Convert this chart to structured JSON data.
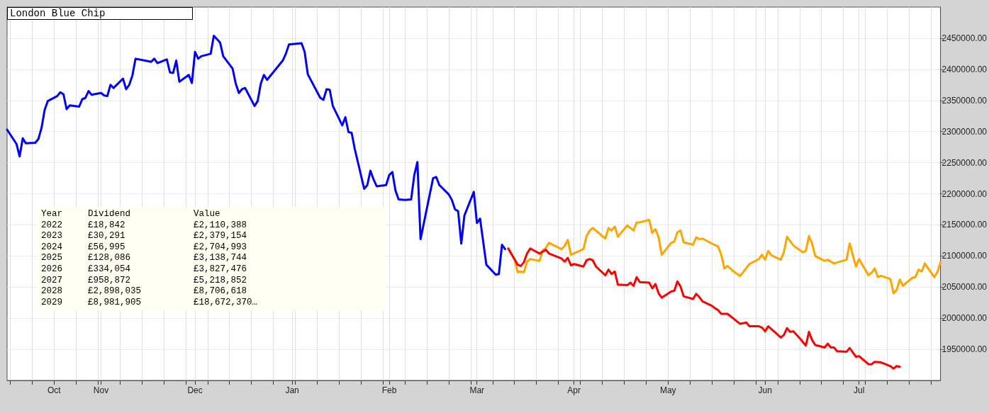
{
  "chart_data": {
    "type": "line",
    "title": "London Blue Chip",
    "xlim": [
      "2024-10-02",
      "2025-07-27"
    ],
    "xticks": [
      {
        "value": "2024-10-03",
        "label": null
      },
      {
        "value": "2024-10-10",
        "label": null
      },
      {
        "value": "2024-10-17",
        "label": "Oct"
      },
      {
        "value": "2024-10-24",
        "label": null
      },
      {
        "value": "2024-10-31",
        "label": null
      },
      {
        "value": "2024-11-01",
        "label": "Nov"
      },
      {
        "value": "2024-11-07",
        "label": null
      },
      {
        "value": "2024-11-14",
        "label": null
      },
      {
        "value": "2024-11-21",
        "label": null
      },
      {
        "value": "2024-11-28",
        "label": null
      },
      {
        "value": "2024-12-01",
        "label": "Dec"
      },
      {
        "value": "2024-12-05",
        "label": null
      },
      {
        "value": "2024-12-12",
        "label": null
      },
      {
        "value": "2024-12-19",
        "label": null
      },
      {
        "value": "2024-12-26",
        "label": null
      },
      {
        "value": "2025-01-01",
        "label": "Jan"
      },
      {
        "value": "2025-01-02",
        "label": null
      },
      {
        "value": "2025-01-09",
        "label": null
      },
      {
        "value": "2025-01-16",
        "label": null
      },
      {
        "value": "2025-01-23",
        "label": null
      },
      {
        "value": "2025-01-30",
        "label": null
      },
      {
        "value": "2025-02-01",
        "label": "Feb"
      },
      {
        "value": "2025-02-06",
        "label": null
      },
      {
        "value": "2025-02-13",
        "label": null
      },
      {
        "value": "2025-02-20",
        "label": null
      },
      {
        "value": "2025-02-27",
        "label": null
      },
      {
        "value": "2025-03-01",
        "label": "Mar"
      },
      {
        "value": "2025-03-06",
        "label": null
      },
      {
        "value": "2025-03-13",
        "label": null
      },
      {
        "value": "2025-03-20",
        "label": null
      },
      {
        "value": "2025-03-27",
        "label": null
      },
      {
        "value": "2025-04-01",
        "label": "Apr"
      },
      {
        "value": "2025-04-03",
        "label": null
      },
      {
        "value": "2025-04-10",
        "label": null
      },
      {
        "value": "2025-04-17",
        "label": null
      },
      {
        "value": "2025-04-24",
        "label": null
      },
      {
        "value": "2025-05-01",
        "label": "May"
      },
      {
        "value": "2025-05-08",
        "label": null
      },
      {
        "value": "2025-05-15",
        "label": null
      },
      {
        "value": "2025-05-22",
        "label": null
      },
      {
        "value": "2025-05-29",
        "label": null
      },
      {
        "value": "2025-06-01",
        "label": "Jun"
      },
      {
        "value": "2025-06-05",
        "label": null
      },
      {
        "value": "2025-06-12",
        "label": null
      },
      {
        "value": "2025-06-19",
        "label": null
      },
      {
        "value": "2025-06-26",
        "label": null
      },
      {
        "value": "2025-07-01",
        "label": "Jul"
      },
      {
        "value": "2025-07-03",
        "label": null
      },
      {
        "value": "2025-07-10",
        "label": null
      },
      {
        "value": "2025-07-17",
        "label": null
      },
      {
        "value": "2025-07-24",
        "label": null
      }
    ],
    "ylim": [
      1900000,
      2500000
    ],
    "yticks": [
      {
        "value": 1950000,
        "label": "1950000.00"
      },
      {
        "value": 2000000,
        "label": "2000000.00"
      },
      {
        "value": 2050000,
        "label": "2050000.00"
      },
      {
        "value": 2100000,
        "label": "2100000.00"
      },
      {
        "value": 2150000,
        "label": "2150000.00"
      },
      {
        "value": 2200000,
        "label": "2200000.00"
      },
      {
        "value": 2250000,
        "label": "2250000.00"
      },
      {
        "value": 2300000,
        "label": "2300000.00"
      },
      {
        "value": 2350000,
        "label": "2350000.00"
      },
      {
        "value": 2400000,
        "label": "2400000.00"
      },
      {
        "value": 2450000,
        "label": "2450000.00"
      }
    ],
    "grid": true,
    "marker": "none",
    "line_style": "solid",
    "series": [
      {
        "color": "#0000ff",
        "x": [
          "2024-10-02",
          "2024-10-05",
          "2024-10-06",
          "2024-10-07",
          "2024-10-08",
          "2024-10-11",
          "2024-10-12",
          "2024-10-13",
          "2024-10-14",
          "2024-10-15",
          "2024-10-18",
          "2024-10-19",
          "2024-10-20",
          "2024-10-21",
          "2024-10-22",
          "2024-10-25",
          "2024-10-26",
          "2024-10-27",
          "2024-10-28",
          "2024-10-29",
          "2024-11-01",
          "2024-11-02",
          "2024-11-03",
          "2024-11-04",
          "2024-11-05",
          "2024-11-08",
          "2024-11-09",
          "2024-11-10",
          "2024-11-11",
          "2024-11-12",
          "2024-11-15",
          "2024-11-17",
          "2024-11-18",
          "2024-11-19",
          "2024-11-22",
          "2024-11-23",
          "2024-11-24",
          "2024-11-25",
          "2024-11-26",
          "2024-11-29",
          "2024-11-30",
          "2024-12-01",
          "2024-12-02",
          "2024-12-03",
          "2024-12-06",
          "2024-12-07",
          "2024-12-09",
          "2024-12-10",
          "2024-12-13",
          "2024-12-14",
          "2024-12-15",
          "2024-12-16",
          "2024-12-17",
          "2024-12-20",
          "2024-12-21",
          "2024-12-22",
          "2024-12-23",
          "2024-12-24",
          "2024-12-29",
          "2024-12-30",
          "2024-12-31",
          "2025-01-04",
          "2025-01-05",
          "2025-01-06",
          "2025-01-10",
          "2025-01-11",
          "2025-01-12",
          "2025-01-13",
          "2025-01-14",
          "2025-01-17",
          "2025-01-18",
          "2025-01-19",
          "2025-01-20",
          "2025-01-21",
          "2025-01-24",
          "2025-01-25",
          "2025-01-26",
          "2025-01-27",
          "2025-01-28",
          "2025-01-31",
          "2025-02-01",
          "2025-02-02",
          "2025-02-03",
          "2025-02-04",
          "2025-02-06",
          "2025-02-08",
          "2025-02-09",
          "2025-02-10",
          "2025-02-11",
          "2025-02-15",
          "2025-02-16",
          "2025-02-17",
          "2025-02-20",
          "2025-02-21",
          "2025-02-22",
          "2025-02-23",
          "2025-02-24",
          "2025-02-25",
          "2025-02-28",
          "2025-03-01",
          "2025-03-02",
          "2025-03-04",
          "2025-03-07",
          "2025-03-08",
          "2025-03-09",
          "2025-03-10"
        ],
        "values": [
          2303000,
          2280000,
          2260000,
          2289000,
          2281000,
          2282000,
          2288000,
          2306000,
          2335000,
          2349000,
          2357000,
          2363000,
          2360000,
          2336000,
          2342000,
          2340000,
          2352000,
          2354000,
          2365000,
          2359000,
          2362000,
          2358000,
          2357000,
          2375000,
          2370000,
          2385000,
          2368000,
          2375000,
          2390000,
          2417000,
          2414000,
          2412000,
          2417000,
          2410000,
          2416000,
          2395000,
          2394000,
          2414000,
          2380000,
          2391000,
          2378000,
          2428000,
          2417000,
          2421000,
          2425000,
          2454000,
          2443000,
          2421000,
          2401000,
          2377000,
          2362000,
          2368000,
          2370000,
          2341000,
          2349000,
          2377000,
          2391000,
          2383000,
          2414000,
          2425000,
          2440000,
          2442000,
          2428000,
          2392000,
          2354000,
          2351000,
          2368000,
          2367000,
          2341000,
          2310000,
          2323000,
          2299000,
          2298000,
          2272000,
          2208000,
          2214000,
          2237000,
          2223000,
          2212000,
          2214000,
          2230000,
          2235000,
          2205000,
          2191000,
          2190000,
          2191000,
          2230000,
          2251000,
          2127000,
          2225000,
          2227000,
          2214000,
          2199000,
          2190000,
          2175000,
          2172000,
          2120000,
          2165000,
          2203000,
          2153000,
          2160000,
          2086000,
          2070000,
          2071000,
          2118000,
          2111000
        ]
      },
      {
        "color": "#ffa500",
        "x": [
          "2025-03-11",
          "2025-03-13",
          "2025-03-14",
          "2025-03-15",
          "2025-03-16",
          "2025-03-17",
          "2025-03-18",
          "2025-03-21",
          "2025-03-22",
          "2025-03-23",
          "2025-03-24",
          "2025-03-28",
          "2025-03-29",
          "2025-03-30",
          "2025-03-31",
          "2025-04-04",
          "2025-04-05",
          "2025-04-06",
          "2025-04-07",
          "2025-04-11",
          "2025-04-12",
          "2025-04-13",
          "2025-04-14",
          "2025-04-15",
          "2025-04-18",
          "2025-04-20",
          "2025-04-21",
          "2025-04-22",
          "2025-04-25",
          "2025-04-26",
          "2025-04-27",
          "2025-04-28",
          "2025-04-29",
          "2025-05-02",
          "2025-05-03",
          "2025-05-04",
          "2025-05-05",
          "2025-05-06",
          "2025-05-09",
          "2025-05-10",
          "2025-05-11",
          "2025-05-12",
          "2025-05-15",
          "2025-05-17",
          "2025-05-18",
          "2025-05-19",
          "2025-05-20",
          "2025-05-22",
          "2025-05-24",
          "2025-05-25",
          "2025-05-27",
          "2025-05-30",
          "2025-05-31",
          "2025-06-01",
          "2025-06-02",
          "2025-06-03",
          "2025-06-06",
          "2025-06-07",
          "2025-06-08",
          "2025-06-10",
          "2025-06-13",
          "2025-06-14",
          "2025-06-15",
          "2025-06-16",
          "2025-06-17",
          "2025-06-20",
          "2025-06-21",
          "2025-06-23",
          "2025-06-27",
          "2025-06-28",
          "2025-06-30",
          "2025-07-01",
          "2025-07-04",
          "2025-07-05",
          "2025-07-06",
          "2025-07-07",
          "2025-07-08",
          "2025-07-11",
          "2025-07-12",
          "2025-07-13",
          "2025-07-14",
          "2025-07-15",
          "2025-07-18",
          "2025-07-19",
          "2025-07-20",
          "2025-07-21",
          "2025-07-22",
          "2025-07-25",
          "2025-07-26",
          "2025-07-27"
        ],
        "values": [
          2112000,
          2095000,
          2074000,
          2075000,
          2074000,
          2091000,
          2095000,
          2092000,
          2109000,
          2113000,
          2121000,
          2111000,
          2116000,
          2126000,
          2102000,
          2111000,
          2132000,
          2141000,
          2145000,
          2128000,
          2145000,
          2141000,
          2147000,
          2131000,
          2149000,
          2141000,
          2154000,
          2154000,
          2158000,
          2137000,
          2143000,
          2130000,
          2102000,
          2121000,
          2123000,
          2138000,
          2141000,
          2122000,
          2118000,
          2130000,
          2127000,
          2128000,
          2120000,
          2115000,
          2102000,
          2080000,
          2084000,
          2075000,
          2068000,
          2074000,
          2087000,
          2095000,
          2102000,
          2094000,
          2108000,
          2101000,
          2094000,
          2106000,
          2131000,
          2117000,
          2106000,
          2108000,
          2132000,
          2120000,
          2100000,
          2092000,
          2094000,
          2088000,
          2094000,
          2120000,
          2083000,
          2095000,
          2069000,
          2073000,
          2080000,
          2066000,
          2068000,
          2063000,
          2040000,
          2045000,
          2062000,
          2052000,
          2065000,
          2066000,
          2078000,
          2075000,
          2088000,
          2066000,
          2074000,
          2090000
        ]
      },
      {
        "color": "#ff0000",
        "x": [
          "2025-03-11",
          "2025-03-14",
          "2025-03-15",
          "2025-03-16",
          "2025-03-17",
          "2025-03-18",
          "2025-03-21",
          "2025-03-23",
          "2025-03-24",
          "2025-03-28",
          "2025-03-29",
          "2025-03-30",
          "2025-03-31",
          "2025-04-01",
          "2025-04-04",
          "2025-04-05",
          "2025-04-06",
          "2025-04-07",
          "2025-04-08",
          "2025-04-11",
          "2025-04-12",
          "2025-04-13",
          "2025-04-14",
          "2025-04-15",
          "2025-04-18",
          "2025-04-19",
          "2025-04-20",
          "2025-04-21",
          "2025-04-22",
          "2025-04-25",
          "2025-04-26",
          "2025-04-27",
          "2025-04-28",
          "2025-04-29",
          "2025-05-02",
          "2025-05-03",
          "2025-05-04",
          "2025-05-05",
          "2025-05-06",
          "2025-05-09",
          "2025-05-10",
          "2025-05-11",
          "2025-05-12",
          "2025-05-15",
          "2025-05-16",
          "2025-05-17",
          "2025-05-18",
          "2025-05-20",
          "2025-05-24",
          "2025-05-25",
          "2025-05-26",
          "2025-05-27",
          "2025-05-30",
          "2025-05-31",
          "2025-06-01",
          "2025-06-02",
          "2025-06-04",
          "2025-06-06",
          "2025-06-07",
          "2025-06-08",
          "2025-06-09",
          "2025-06-10",
          "2025-06-12",
          "2025-06-14",
          "2025-06-15",
          "2025-06-16",
          "2025-06-17",
          "2025-06-20",
          "2025-06-21",
          "2025-06-22",
          "2025-06-23",
          "2025-06-24",
          "2025-06-27",
          "2025-06-28",
          "2025-06-30",
          "2025-07-01",
          "2025-07-04",
          "2025-07-05",
          "2025-07-06",
          "2025-07-08",
          "2025-07-10",
          "2025-07-11",
          "2025-07-12",
          "2025-07-13",
          "2025-07-14"
        ],
        "values": [
          2112000,
          2086000,
          2084000,
          2090000,
          2104000,
          2112000,
          2104000,
          2110000,
          2104000,
          2096000,
          2091000,
          2097000,
          2085000,
          2087000,
          2083000,
          2093000,
          2095000,
          2093000,
          2083000,
          2069000,
          2078000,
          2071000,
          2075000,
          2054000,
          2053000,
          2057000,
          2052000,
          2066000,
          2058000,
          2057000,
          2048000,
          2055000,
          2040000,
          2033000,
          2043000,
          2044000,
          2059000,
          2051000,
          2035000,
          2031000,
          2039000,
          2034000,
          2027000,
          2020000,
          2016000,
          2013000,
          2007000,
          2007000,
          1991000,
          1992000,
          1993000,
          1987000,
          1987000,
          1985000,
          1979000,
          1987000,
          1978000,
          1969000,
          1973000,
          1984000,
          1978000,
          1979000,
          1968000,
          1956000,
          1978000,
          1965000,
          1957000,
          1953000,
          1959000,
          1953000,
          1953000,
          1947000,
          1946000,
          1952000,
          1938000,
          1939000,
          1926000,
          1926000,
          1930000,
          1929000,
          1925000,
          1923000,
          1919000,
          1923000,
          1922000
        ]
      }
    ],
    "annotations": [
      "Year",
      "Dividend",
      "Value",
      "2022",
      "£18,842",
      "£2,110,388",
      "2023",
      "£30,291",
      "£2,379,154",
      "2024",
      "£56,995",
      "£2,704,993",
      "2025",
      "£128,086",
      "£3,138,744",
      "2026",
      "£334,054",
      "£3,827,476",
      "2027",
      "£958,872",
      "£5,218,852",
      "2028",
      "£2,898,035",
      "£8,706,618",
      "2029",
      "£8,981,905",
      "£18,672,370…"
    ]
  }
}
